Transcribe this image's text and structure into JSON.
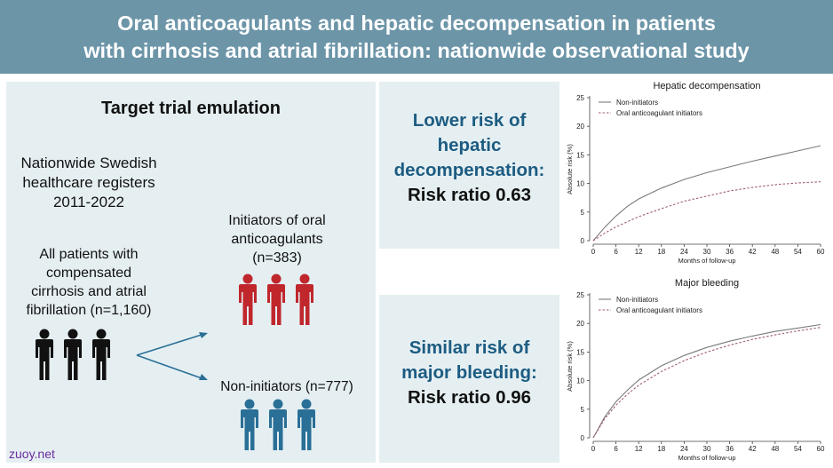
{
  "header": {
    "title_line1": "Oral anticoagulants and hepatic decompensation in patients",
    "title_line2": "with cirrhosis and atrial fibrillation: nationwide observational study"
  },
  "left": {
    "title": "Target trial emulation",
    "registers_line1": "Nationwide Swedish",
    "registers_line2": "healthcare registers",
    "registers_line3": "2011-2022",
    "all_line1": "All patients with",
    "all_line2": "compensated",
    "all_line3": "cirrhosis and atrial",
    "all_line4": "fibrillation (n=1,160)",
    "init_line1": "Initiators of oral",
    "init_line2": "anticoagulants",
    "init_line3": "(n=383)",
    "noninit": "Non-initiators (n=777)",
    "colors": {
      "all": "#111111",
      "initiators": "#c0272d",
      "noninitiators": "#2a6f96"
    },
    "icons": [
      "people-group-icon",
      "people-group-icon",
      "people-group-icon",
      "arrow-icon"
    ]
  },
  "middle": {
    "top_line1": "Lower risk of",
    "top_line2": "hepatic",
    "top_line3": "decompensation:",
    "top_ratio": "Risk ratio 0.63",
    "bottom_line1": "Similar risk of",
    "bottom_line2": "major bleeding:",
    "bottom_ratio": "Risk ratio 0.96",
    "accent": "#1d5c82"
  },
  "watermark": "zuoy.net",
  "chart_data": [
    {
      "type": "line",
      "title": "Hepatic decompensation",
      "xlabel": "Months of follow-up",
      "ylabel": "Absolute risk (%)",
      "x_ticks": [
        0,
        6,
        12,
        18,
        24,
        30,
        36,
        42,
        48,
        54,
        60
      ],
      "y_ticks": [
        0,
        5,
        10,
        15,
        20,
        25
      ],
      "xlim": [
        0,
        60
      ],
      "ylim": [
        0,
        25
      ],
      "legend_position": "top-left",
      "x": [
        0,
        3,
        6,
        9,
        12,
        18,
        24,
        30,
        36,
        42,
        48,
        54,
        60
      ],
      "series": [
        {
          "name": "Non-initiators",
          "style": "solid",
          "color": "#7a7a7a",
          "values": [
            0,
            2.3,
            4.3,
            6.0,
            7.3,
            9.2,
            10.7,
            11.9,
            12.9,
            13.9,
            14.8,
            15.7,
            16.6
          ]
        },
        {
          "name": "Oral anticoagulant initiators",
          "style": "dashed",
          "color": "#a05a78",
          "values": [
            0,
            1.3,
            2.4,
            3.3,
            4.2,
            5.6,
            6.9,
            7.8,
            8.7,
            9.3,
            9.8,
            10.1,
            10.3
          ]
        }
      ]
    },
    {
      "type": "line",
      "title": "Major bleeding",
      "xlabel": "Months of follow-up",
      "ylabel": "Absolute risk (%)",
      "x_ticks": [
        0,
        6,
        12,
        18,
        24,
        30,
        36,
        42,
        48,
        54,
        60
      ],
      "y_ticks": [
        0,
        5,
        10,
        15,
        20,
        25
      ],
      "xlim": [
        0,
        60
      ],
      "ylim": [
        0,
        25
      ],
      "legend_position": "top-left",
      "x": [
        0,
        3,
        6,
        9,
        12,
        18,
        24,
        30,
        36,
        42,
        48,
        54,
        60
      ],
      "series": [
        {
          "name": "Non-initiators",
          "style": "solid",
          "color": "#7a7a7a",
          "values": [
            0,
            3.6,
            6.3,
            8.3,
            10.1,
            12.6,
            14.4,
            15.8,
            16.9,
            17.8,
            18.6,
            19.2,
            19.8
          ]
        },
        {
          "name": "Oral anticoagulant initiators",
          "style": "dashed",
          "color": "#a05a78",
          "values": [
            0,
            3.3,
            5.7,
            7.6,
            9.2,
            11.6,
            13.5,
            15.0,
            16.2,
            17.2,
            18.0,
            18.7,
            19.3
          ]
        }
      ]
    }
  ]
}
